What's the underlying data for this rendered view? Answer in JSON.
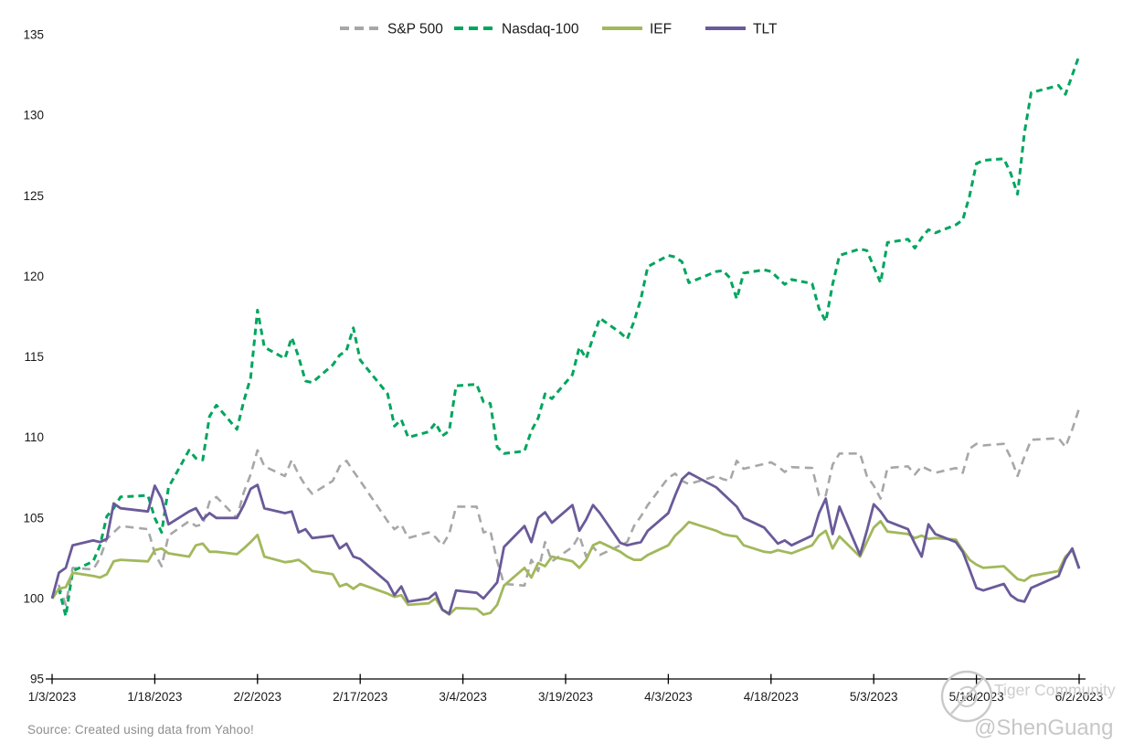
{
  "source_note": "Source: Created using data from Yahoo!",
  "watermark": {
    "community": "Tiger Community",
    "handle": "@ShenGuang"
  },
  "chart_data": {
    "type": "line",
    "title": "",
    "xlabel": "",
    "ylabel": "",
    "ylim": [
      95,
      135
    ],
    "y_ticks": [
      95,
      100,
      105,
      110,
      115,
      120,
      125,
      130,
      135
    ],
    "x_tick_labels": [
      "1/3/2023",
      "1/18/2023",
      "2/2/2023",
      "2/17/2023",
      "3/4/2023",
      "3/19/2023",
      "4/3/2023",
      "4/18/2023",
      "5/3/2023",
      "5/18/2023",
      "6/2/2023"
    ],
    "x_tick_days": [
      0,
      15,
      30,
      45,
      60,
      75,
      90,
      105,
      120,
      135,
      150
    ],
    "x_range_days": [
      0,
      150
    ],
    "grid": false,
    "legend_position": "top",
    "axis_color": "#000000",
    "x_days": [
      0,
      1,
      2,
      3,
      6,
      7,
      8,
      9,
      10,
      14,
      15,
      16,
      17,
      20,
      21,
      22,
      23,
      24,
      27,
      28,
      29,
      30,
      31,
      34,
      35,
      36,
      37,
      38,
      41,
      42,
      43,
      44,
      45,
      49,
      50,
      51,
      52,
      55,
      56,
      57,
      58,
      59,
      62,
      63,
      64,
      65,
      66,
      69,
      70,
      71,
      72,
      73,
      76,
      77,
      78,
      79,
      80,
      83,
      84,
      85,
      86,
      87,
      90,
      91,
      92,
      93,
      97,
      98,
      99,
      100,
      101,
      104,
      105,
      106,
      107,
      108,
      111,
      112,
      113,
      114,
      115,
      118,
      119,
      120,
      121,
      122,
      125,
      126,
      127,
      128,
      129,
      132,
      133,
      134,
      135,
      136,
      139,
      140,
      141,
      142,
      143,
      147,
      148,
      149,
      150
    ],
    "series": [
      {
        "id": "sp500",
        "name": "S&P 500",
        "color": "#a7a7a7",
        "dash": "9 6",
        "width": 2.6,
        "values": [
          100.0,
          100.8,
          99.6,
          101.9,
          101.8,
          102.5,
          103.7,
          104.1,
          104.5,
          104.3,
          102.8,
          102.0,
          103.9,
          104.8,
          104.5,
          104.6,
          106.0,
          106.3,
          105.0,
          106.6,
          107.7,
          109.2,
          108.2,
          107.6,
          108.6,
          107.7,
          107.0,
          106.5,
          107.3,
          108.2,
          108.55,
          107.9,
          107.3,
          104.8,
          104.3,
          104.6,
          103.75,
          104.1,
          103.8,
          103.3,
          104.0,
          105.7,
          105.7,
          104.1,
          104.2,
          102.3,
          100.9,
          100.8,
          102.4,
          101.7,
          103.5,
          102.3,
          103.2,
          103.9,
          102.6,
          103.2,
          102.7,
          103.3,
          103.5,
          104.5,
          105.1,
          105.8,
          107.5,
          107.75,
          107.3,
          107.1,
          107.6,
          107.4,
          107.3,
          108.55,
          108.05,
          108.35,
          108.45,
          108.2,
          107.85,
          108.15,
          108.1,
          106.4,
          106.4,
          108.3,
          109.0,
          109.0,
          107.6,
          107.0,
          106.2,
          108.1,
          108.2,
          107.7,
          108.2,
          108.0,
          107.8,
          108.1,
          107.8,
          109.3,
          109.6,
          109.5,
          109.6,
          108.75,
          107.6,
          108.8,
          109.85,
          109.95,
          109.4,
          110.5,
          111.8
        ]
      },
      {
        "id": "nasdaq100",
        "name": "Nasdaq-100",
        "color": "#00a55e",
        "dash": "7 5",
        "width": 3,
        "values": [
          100.0,
          100.6,
          98.9,
          101.7,
          102.3,
          103.3,
          105.1,
          105.6,
          106.3,
          106.4,
          105.0,
          104.1,
          106.9,
          109.2,
          108.7,
          108.6,
          111.3,
          112.0,
          110.5,
          112.25,
          113.7,
          117.9,
          115.6,
          114.9,
          116.2,
          115.0,
          113.5,
          113.4,
          114.5,
          115.1,
          115.4,
          116.8,
          114.8,
          112.7,
          110.7,
          111.1,
          110.0,
          110.35,
          110.9,
          110.1,
          110.4,
          113.2,
          113.3,
          112.2,
          112.1,
          109.4,
          109.0,
          109.15,
          110.4,
          111.2,
          112.7,
          112.4,
          113.9,
          115.6,
          114.9,
          116.2,
          117.4,
          116.5,
          116.1,
          117.2,
          118.6,
          120.6,
          121.3,
          121.2,
          120.9,
          119.6,
          120.3,
          120.35,
          119.9,
          118.6,
          120.2,
          120.4,
          120.3,
          119.9,
          119.5,
          119.8,
          119.55,
          118.0,
          117.2,
          119.5,
          121.3,
          121.7,
          121.6,
          120.6,
          119.6,
          122.1,
          122.3,
          121.75,
          122.4,
          122.9,
          122.7,
          123.2,
          123.5,
          125.0,
          127.0,
          127.2,
          127.3,
          126.4,
          125.1,
          128.9,
          131.4,
          131.85,
          131.3,
          132.5,
          133.7
        ]
      },
      {
        "id": "ief",
        "name": "IEF",
        "color": "#a2b85c",
        "dash": null,
        "width": 2.8,
        "values": [
          100.0,
          100.6,
          100.7,
          101.6,
          101.4,
          101.3,
          101.5,
          102.3,
          102.4,
          102.3,
          103.0,
          103.1,
          102.8,
          102.6,
          103.3,
          103.4,
          102.9,
          102.9,
          102.75,
          103.1,
          103.5,
          103.95,
          102.6,
          102.25,
          102.3,
          102.4,
          102.1,
          101.7,
          101.5,
          100.75,
          100.9,
          100.6,
          100.9,
          100.3,
          100.1,
          100.2,
          99.6,
          99.7,
          100.0,
          99.3,
          99.0,
          99.4,
          99.35,
          99.0,
          99.1,
          99.6,
          100.8,
          101.9,
          101.3,
          102.2,
          102.0,
          102.6,
          102.3,
          101.9,
          102.4,
          103.3,
          103.5,
          102.9,
          102.6,
          102.4,
          102.4,
          102.7,
          103.3,
          103.9,
          104.3,
          104.75,
          104.2,
          104.0,
          103.9,
          103.85,
          103.3,
          102.9,
          102.85,
          103.0,
          102.9,
          102.8,
          103.3,
          103.9,
          104.2,
          103.1,
          103.85,
          102.6,
          103.5,
          104.4,
          104.8,
          104.15,
          104.0,
          103.75,
          103.9,
          103.7,
          103.75,
          103.65,
          103.0,
          102.4,
          102.1,
          101.9,
          102.0,
          101.6,
          101.2,
          101.1,
          101.4,
          101.7,
          102.6,
          103.0,
          101.9
        ]
      },
      {
        "id": "tlt",
        "name": "TLT",
        "color": "#6a5a99",
        "dash": null,
        "width": 2.8,
        "values": [
          100.0,
          101.6,
          101.9,
          103.3,
          103.6,
          103.5,
          103.7,
          105.9,
          105.6,
          105.4,
          107.0,
          106.2,
          104.6,
          105.4,
          105.6,
          104.9,
          105.3,
          105.0,
          105.0,
          105.8,
          106.8,
          107.05,
          105.6,
          105.3,
          105.4,
          104.1,
          104.3,
          103.75,
          103.9,
          103.1,
          103.4,
          102.6,
          102.45,
          101.0,
          100.2,
          100.75,
          99.8,
          100.0,
          100.35,
          99.3,
          99.05,
          100.5,
          100.35,
          100.0,
          100.5,
          101.0,
          103.2,
          104.5,
          103.5,
          105.0,
          105.35,
          104.7,
          105.8,
          104.2,
          104.9,
          105.8,
          105.3,
          103.45,
          103.3,
          103.4,
          103.5,
          104.2,
          105.3,
          106.4,
          107.4,
          107.8,
          106.9,
          106.5,
          106.1,
          105.7,
          105.0,
          104.4,
          103.9,
          103.4,
          103.6,
          103.3,
          103.9,
          105.3,
          106.2,
          104.0,
          105.7,
          102.7,
          104.2,
          105.85,
          105.4,
          104.8,
          104.3,
          103.4,
          102.6,
          104.6,
          104.0,
          103.5,
          102.9,
          101.8,
          100.65,
          100.5,
          100.9,
          100.2,
          99.9,
          99.8,
          100.65,
          101.4,
          102.45,
          103.1,
          101.85
        ]
      }
    ]
  }
}
